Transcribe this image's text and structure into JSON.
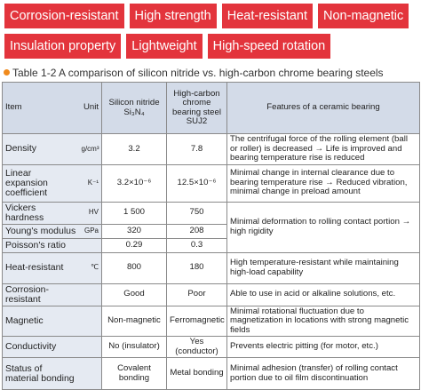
{
  "tags": [
    "Corrosion-resistant",
    "High strength",
    "Heat-resistant",
    "Non-magnetic",
    "Insulation property",
    "Lightweight",
    "High-speed rotation"
  ],
  "caption": "Table 1-2 A comparison of silicon nitride vs. high-carbon chrome bearing steels",
  "table": {
    "header": {
      "item": "Item",
      "unit": "Unit",
      "silicon": "Silicon nitride",
      "silicon_formula": "Si₃N₄",
      "steel": "High-carbon chrome bearing steel",
      "steel_code": "SUJ2",
      "features": "Features of a ceramic bearing"
    },
    "rows": [
      {
        "item": "Density",
        "unit": "g/cm³",
        "silicon": "3.2",
        "steel": "7.8",
        "feature": "The centrifugal force of the rolling element (ball or roller) is decreased → Life is improved and bearing temperature rise is reduced"
      },
      {
        "item": "Linear expansion coefficient",
        "unit": "K⁻¹",
        "silicon": "3.2×10⁻⁶",
        "steel": "12.5×10⁻⁶",
        "feature": "Minimal change in internal clearance due to bearing temperature rise → Reduced vibration, minimal change in preload amount"
      },
      {
        "item": "Vickers hardness",
        "unit": "HV",
        "silicon": "1 500",
        "steel": "750",
        "feature": "Minimal deformation to rolling contact portion → high rigidity"
      },
      {
        "item": "Young's modulus",
        "unit": "GPa",
        "silicon": "320",
        "steel": "208"
      },
      {
        "item": "Poisson's ratio",
        "silicon": "0.29",
        "steel": "0.3"
      },
      {
        "item": "Heat-resistant",
        "unit": "℃",
        "silicon": "800",
        "steel": "180",
        "feature": "High temperature-resistant while maintaining high-load capability"
      },
      {
        "item": "Corrosion-resistant",
        "silicon": "Good",
        "steel": "Poor",
        "feature": "Able to use in acid or alkaline solutions, etc."
      },
      {
        "item": "Magnetic",
        "silicon": "Non-magnetic",
        "steel": "Ferromagnetic",
        "feature": "Minimal rotational fluctuation due to magnetization in locations with strong magnetic fields"
      },
      {
        "item": "Conductivity",
        "silicon": "No (insulator)",
        "steel": "Yes (conductor)",
        "feature": "Prevents electric pitting (for motor, etc.)"
      },
      {
        "item": "Status of material bonding",
        "silicon": "Covalent bonding",
        "steel": "Metal bonding",
        "feature": "Minimal adhesion (transfer) of rolling contact portion due to oil film discontinuation"
      }
    ]
  }
}
